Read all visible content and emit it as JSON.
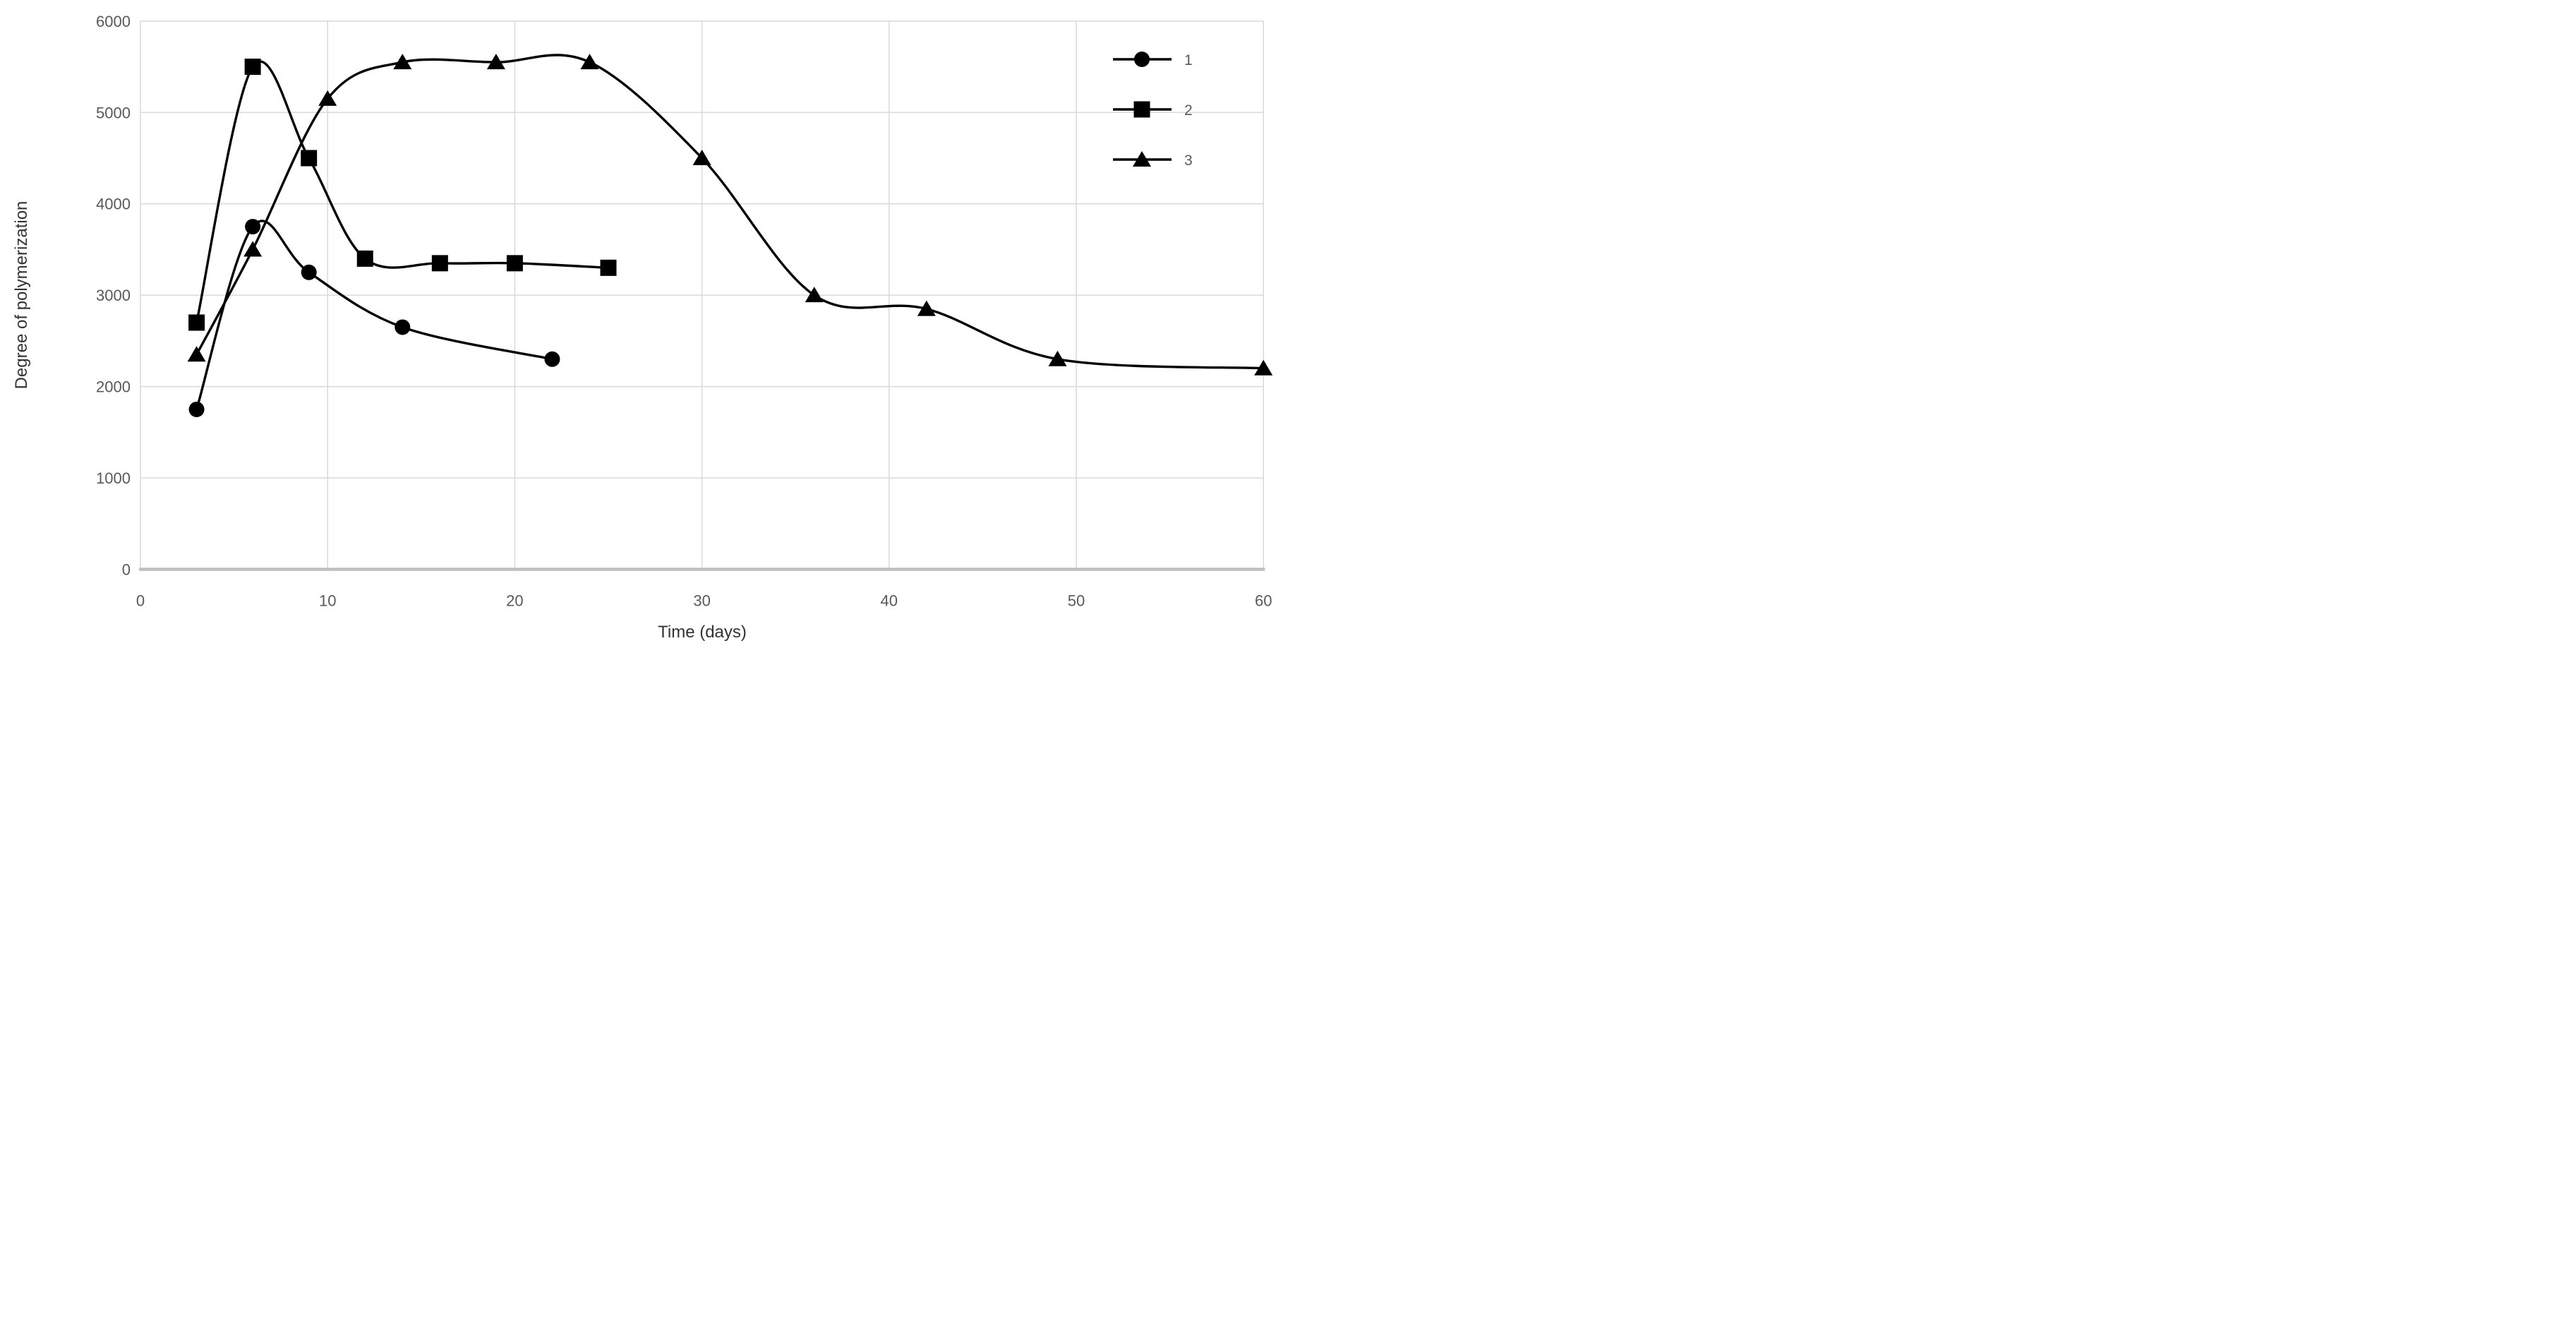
{
  "chart_data": {
    "type": "line",
    "title": "",
    "xlabel": "Time (days)",
    "ylabel": "Degree of polymerization",
    "xlim": [
      0,
      60
    ],
    "ylim": [
      0,
      6000
    ],
    "x_ticks": [
      0,
      10,
      20,
      30,
      40,
      50,
      60
    ],
    "y_ticks": [
      0,
      1000,
      2000,
      3000,
      4000,
      5000,
      6000
    ],
    "grid": true,
    "line_smoothing": true,
    "legend_position": "top-right",
    "series": [
      {
        "name": "1",
        "marker": "circle",
        "points": [
          [
            3,
            1750
          ],
          [
            6,
            3750
          ],
          [
            9,
            3250
          ],
          [
            14,
            2650
          ],
          [
            22,
            2300
          ]
        ]
      },
      {
        "name": "2",
        "marker": "square",
        "points": [
          [
            3,
            2700
          ],
          [
            6,
            5500
          ],
          [
            9,
            4500
          ],
          [
            12,
            3400
          ],
          [
            16,
            3350
          ],
          [
            20,
            3350
          ],
          [
            25,
            3300
          ]
        ]
      },
      {
        "name": "3",
        "marker": "triangle",
        "points": [
          [
            3,
            2350
          ],
          [
            6,
            3500
          ],
          [
            10,
            5150
          ],
          [
            14,
            5550
          ],
          [
            19,
            5550
          ],
          [
            24,
            5550
          ],
          [
            30,
            4500
          ],
          [
            36,
            3000
          ],
          [
            42,
            2850
          ],
          [
            49,
            2300
          ],
          [
            60,
            2200
          ]
        ]
      }
    ],
    "style": {
      "series_color": "#000000",
      "gridline_color": "#d9d9d9",
      "axis_line_color": "#bfbfbf",
      "tick_label_color": "#595959",
      "axis_title_color": "#333333",
      "background_color": "#ffffff"
    }
  }
}
